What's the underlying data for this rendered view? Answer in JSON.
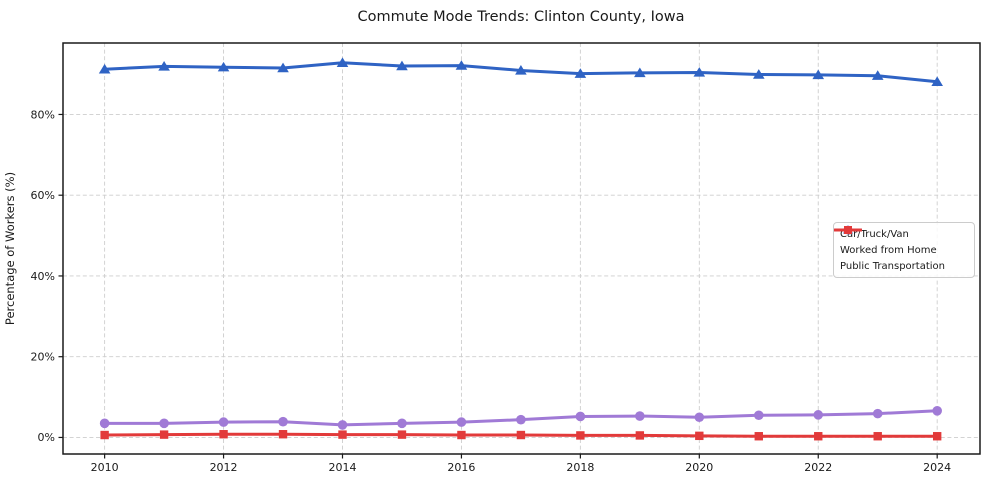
{
  "chart_data": {
    "type": "line",
    "title": "Commute Mode Trends: Clinton County, Iowa",
    "xlabel": "",
    "ylabel": "Percentage of Workers (%)",
    "x": [
      2010,
      2011,
      2012,
      2013,
      2014,
      2015,
      2016,
      2017,
      2018,
      2019,
      2020,
      2021,
      2022,
      2023,
      2024
    ],
    "x_ticks": [
      2010,
      2012,
      2014,
      2016,
      2018,
      2020,
      2022,
      2024
    ],
    "x_tick_labels": [
      "2010",
      "2012",
      "2014",
      "2016",
      "2018",
      "2020",
      "2022",
      "2024"
    ],
    "y_ticks": [
      0,
      20,
      40,
      60,
      80
    ],
    "y_tick_labels": [
      "0%",
      "20%",
      "40%",
      "60%",
      "80%"
    ],
    "xlim": [
      2009.3,
      2024.72
    ],
    "ylim": [
      -4.1,
      97.7
    ],
    "grid": true,
    "grid_style": "dashed",
    "grid_color": "#cdcdcd",
    "axis_color": "#1a1a1a",
    "legend_position": "center-right",
    "series": [
      {
        "name": "Car/Truck/Van",
        "color": "#2f63c4",
        "marker": "triangle",
        "values": [
          91.2,
          91.9,
          91.7,
          91.5,
          92.8,
          92.0,
          92.1,
          90.9,
          90.1,
          90.3,
          90.4,
          89.9,
          89.8,
          89.6,
          88.1
        ]
      },
      {
        "name": "Worked from Home",
        "color": "#a07ad6",
        "marker": "circle",
        "values": [
          3.5,
          3.5,
          3.8,
          3.9,
          3.1,
          3.5,
          3.8,
          4.4,
          5.2,
          5.3,
          5.0,
          5.5,
          5.6,
          5.9,
          6.6
        ]
      },
      {
        "name": "Public Transportation",
        "color": "#e23a3a",
        "marker": "square",
        "values": [
          0.6,
          0.7,
          0.8,
          0.8,
          0.7,
          0.7,
          0.6,
          0.6,
          0.5,
          0.5,
          0.4,
          0.3,
          0.3,
          0.3,
          0.3
        ]
      }
    ]
  }
}
